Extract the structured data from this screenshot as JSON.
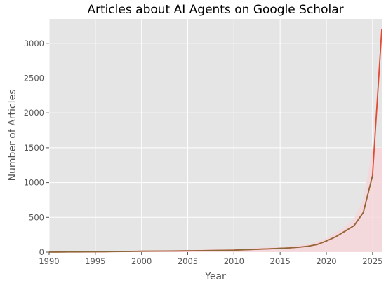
{
  "chart_data": {
    "type": "line",
    "title": "Articles about AI Agents on Google Scholar",
    "xlabel": "Year",
    "ylabel": "Number of Articles",
    "xlim": [
      1990,
      2026
    ],
    "ylim": [
      0,
      3350
    ],
    "xticks": [
      1990,
      1995,
      2000,
      2005,
      2010,
      2015,
      2020,
      2025
    ],
    "yticks": [
      0,
      500,
      1000,
      1500,
      2000,
      2500,
      3000
    ],
    "grid": true,
    "legend": "none",
    "colors": {
      "background": "#e5e5e5",
      "grid": "#ffffff",
      "series_a": "#e24a33",
      "series_b": "#8b6a3a",
      "band": "#f6d6da"
    },
    "series": [
      {
        "x": [
          1990,
          1991,
          1992,
          1993,
          1994,
          1995,
          1996,
          1997,
          1998,
          1999,
          2000,
          2001,
          2002,
          2003,
          2004,
          2005,
          2006,
          2007,
          2008,
          2009,
          2010,
          2011,
          2012,
          2013,
          2014,
          2015,
          2016,
          2017,
          2018,
          2019,
          2020,
          2021,
          2022,
          2023,
          2024,
          2025,
          2026
        ],
        "values": [
          2,
          2,
          3,
          3,
          4,
          5,
          6,
          8,
          9,
          11,
          13,
          14,
          15,
          16,
          17,
          18,
          20,
          22,
          24,
          26,
          28,
          33,
          38,
          43,
          48,
          54,
          60,
          70,
          85,
          110,
          160,
          220,
          300,
          380,
          570,
          1100,
          3200
        ]
      },
      {
        "x": [
          1990,
          1991,
          1992,
          1993,
          1994,
          1995,
          1996,
          1997,
          1998,
          1999,
          2000,
          2001,
          2002,
          2003,
          2004,
          2005,
          2006,
          2007,
          2008,
          2009,
          2010,
          2011,
          2012,
          2013,
          2014,
          2015,
          2016,
          2017,
          2018,
          2019,
          2020,
          2021,
          2022,
          2023,
          2024,
          2025
        ],
        "values": [
          2,
          2,
          3,
          3,
          4,
          5,
          6,
          8,
          9,
          11,
          13,
          14,
          15,
          16,
          17,
          18,
          20,
          22,
          24,
          26,
          28,
          33,
          38,
          43,
          48,
          54,
          60,
          70,
          85,
          110,
          160,
          220,
          300,
          380,
          570,
          1100
        ]
      }
    ],
    "band": {
      "x": [
        1990,
        1995,
        2000,
        2005,
        2010,
        2015,
        2018,
        2020,
        2022,
        2023,
        2024,
        2025,
        2026
      ],
      "lower": [
        0,
        0,
        0,
        0,
        0,
        0,
        0,
        0,
        0,
        0,
        0,
        0,
        0
      ],
      "upper": [
        5,
        10,
        20,
        30,
        45,
        75,
        110,
        200,
        360,
        480,
        760,
        1500,
        1500
      ]
    }
  }
}
